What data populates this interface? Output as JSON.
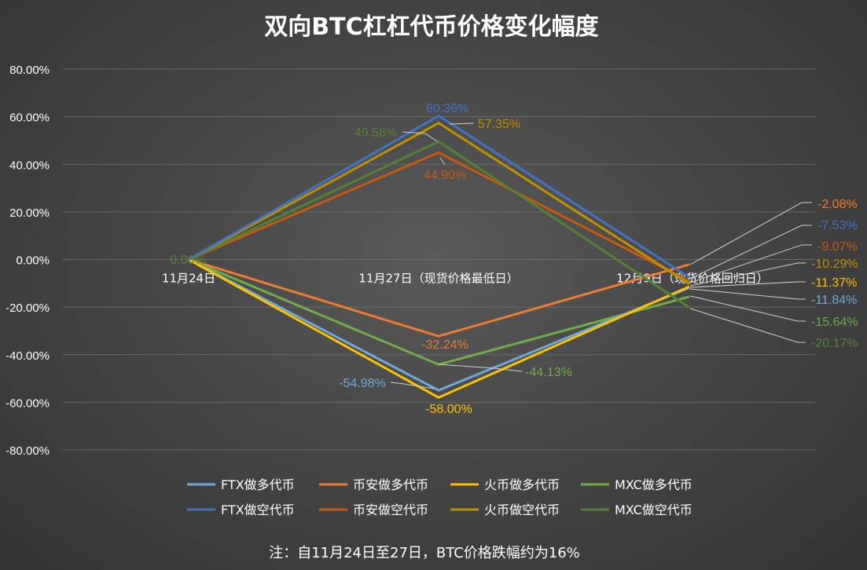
{
  "chart_data": {
    "type": "line",
    "title": "双向BTC杠杠代币价格变化幅度",
    "footnote": "注：自11月24日至27日，BTC价格跌幅约为16%",
    "categories": [
      "11月24日",
      "11月27日（现货价格最低日）",
      "12月9日（现货价格回归日）"
    ],
    "ylim": [
      -80,
      80
    ],
    "yticks": [
      "80.00%",
      "60.00%",
      "40.00%",
      "20.00%",
      "0.00%",
      "-20.00%",
      "-40.00%",
      "-60.00%",
      "-80.00%"
    ],
    "grid": true,
    "legend_position": "bottom",
    "series": [
      {
        "name": "FTX做多代币",
        "values": [
          0,
          -54.98,
          -11.84
        ],
        "color": "#6fa8dc",
        "labels": [
          "",
          "-54.98%",
          "-11.84%"
        ]
      },
      {
        "name": "币安做多代币",
        "values": [
          0,
          -32.24,
          -2.08
        ],
        "color": "#ed7d31",
        "labels": [
          "",
          "-32.24%",
          "-2.08%"
        ]
      },
      {
        "name": "火币做多代币",
        "values": [
          0,
          -58.0,
          -11.37
        ],
        "color": "#ffc000",
        "labels": [
          "",
          "-58.00%",
          "-11.37%"
        ]
      },
      {
        "name": "MXC做多代币",
        "values": [
          0,
          -44.13,
          -15.64
        ],
        "color": "#70ad47",
        "labels": [
          "",
          "-44.13%",
          "-15.64%"
        ]
      },
      {
        "name": "FTX做空代币",
        "values": [
          0,
          60.36,
          -7.53
        ],
        "color": "#4472c4",
        "labels": [
          "",
          "60.36%",
          "-7.53%"
        ]
      },
      {
        "name": "币安做空代币",
        "values": [
          0,
          44.9,
          -9.07
        ],
        "color": "#c55a11",
        "labels": [
          "",
          "44.90%",
          "-9.07%"
        ]
      },
      {
        "name": "火币做空代币",
        "values": [
          0,
          57.35,
          -10.29
        ],
        "color": "#bf9000",
        "labels": [
          "",
          "57.35%",
          "-10.29%"
        ]
      },
      {
        "name": "MXC做空代币",
        "values": [
          0,
          49.58,
          -20.17
        ],
        "color": "#548235",
        "labels": [
          "0.00%",
          "49.58%",
          "-20.17%"
        ]
      }
    ]
  }
}
